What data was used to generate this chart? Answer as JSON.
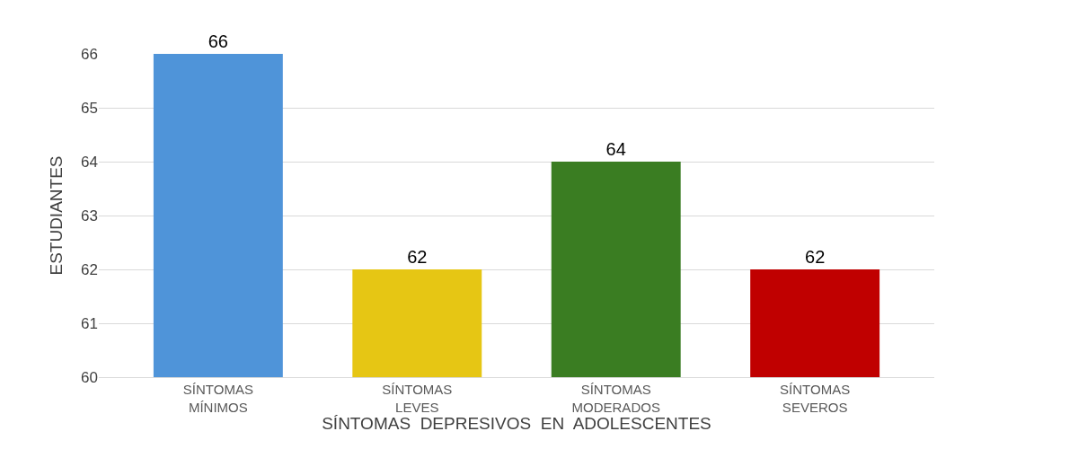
{
  "chart_data": {
    "type": "bar",
    "xlabel": "SÍNTOMAS  DEPRESIVOS  EN  ADOLESCENTES",
    "ylabel": "ESTUDIANTES",
    "categories": [
      "SÍNTOMAS\nMÍNIMOS",
      "SÍNTOMAS\nLEVES",
      "SÍNTOMAS\nMODERADOS",
      "SÍNTOMAS\nSEVEROS"
    ],
    "values": [
      66,
      62,
      64,
      62
    ],
    "colors": [
      "#4f94d9",
      "#e6c614",
      "#3a7d22",
      "#c00000"
    ],
    "ylim": [
      60,
      66
    ],
    "yticks": [
      60,
      61,
      62,
      63,
      64,
      65,
      66
    ],
    "grid": "y",
    "data_labels": true
  }
}
